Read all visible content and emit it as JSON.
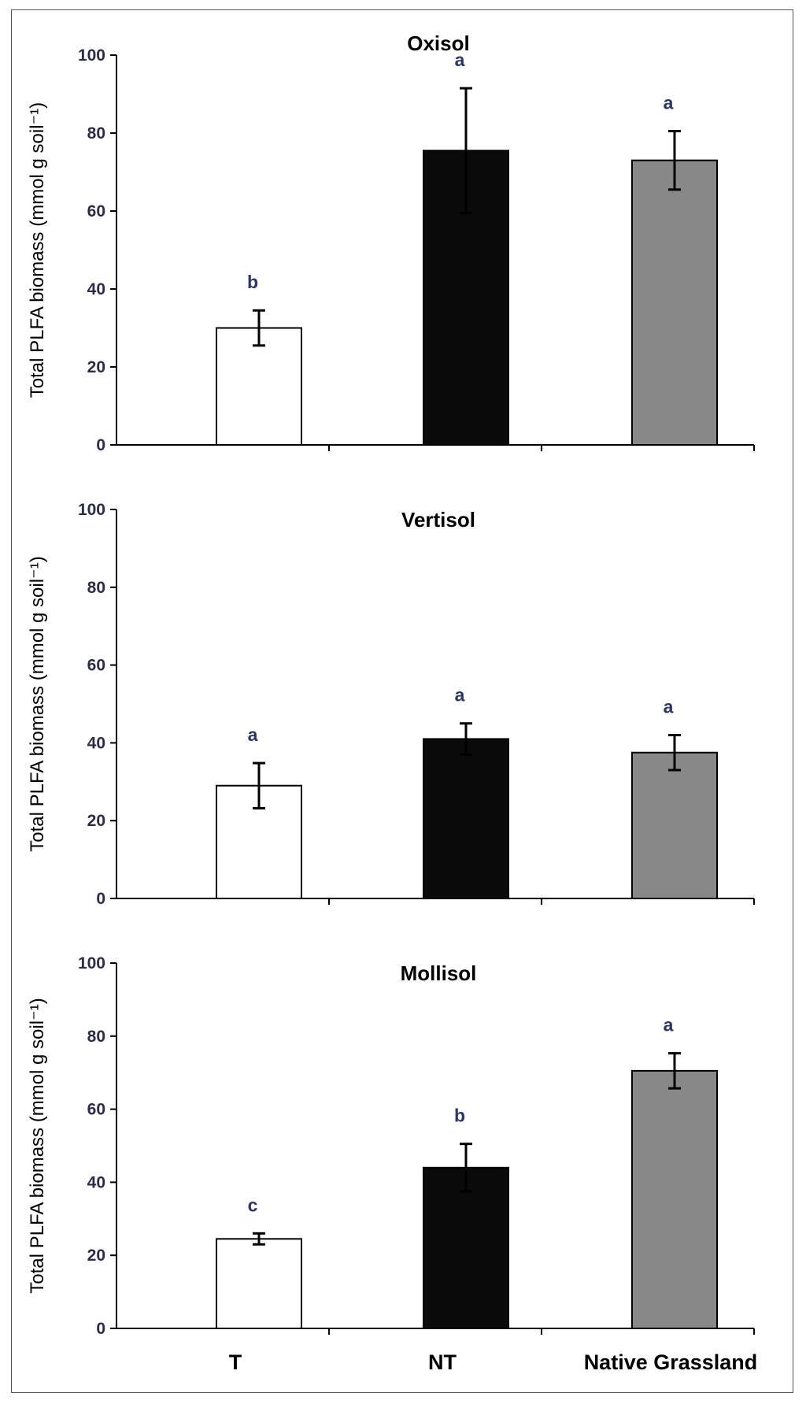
{
  "chart_data": [
    {
      "type": "bar",
      "title": "Oxisol",
      "ylabel": "Total PLFA biomass (mmol g soil⁻¹)",
      "categories": [
        "T",
        "NT",
        "Native Grassland"
      ],
      "values": [
        30,
        75.5,
        73
      ],
      "errors": [
        4.5,
        16,
        7.5
      ],
      "letters": [
        "b",
        "a",
        "a"
      ],
      "colors": [
        "#ffffff",
        "#0a0a0a",
        "#888888"
      ],
      "ylim": [
        0,
        100
      ],
      "yticks": [
        0,
        20,
        40,
        60,
        80,
        100
      ],
      "show_category_labels": false
    },
    {
      "type": "bar",
      "title": "Vertisol",
      "ylabel": "Total PLFA biomass (mmol g soil⁻¹)",
      "categories": [
        "T",
        "NT",
        "Native Grassland"
      ],
      "values": [
        29,
        41,
        37.5
      ],
      "errors": [
        5.8,
        4,
        4.5
      ],
      "letters": [
        "a",
        "a",
        "a"
      ],
      "colors": [
        "#ffffff",
        "#0a0a0a",
        "#888888"
      ],
      "ylim": [
        0,
        100
      ],
      "yticks": [
        0,
        20,
        40,
        60,
        80,
        100
      ],
      "show_category_labels": false
    },
    {
      "type": "bar",
      "title": "Mollisol",
      "ylabel": "Total PLFA biomass (mmol g soil⁻¹)",
      "categories": [
        "T",
        "NT",
        "Native Grassland"
      ],
      "values": [
        24.5,
        44,
        70.5
      ],
      "errors": [
        1.5,
        6.5,
        4.8
      ],
      "letters": [
        "c",
        "b",
        "a"
      ],
      "colors": [
        "#ffffff",
        "#0a0a0a",
        "#888888"
      ],
      "ylim": [
        0,
        100
      ],
      "yticks": [
        0,
        20,
        40,
        60,
        80,
        100
      ],
      "show_category_labels": true
    }
  ]
}
